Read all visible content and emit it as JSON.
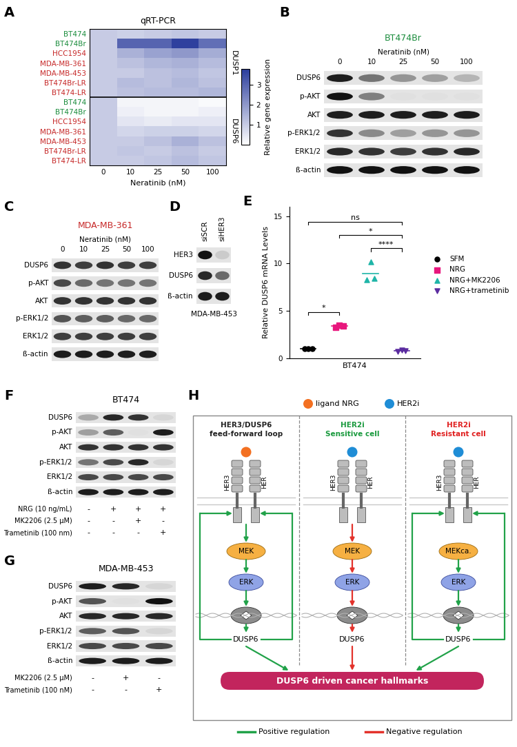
{
  "chart_data": [
    {
      "label": "A",
      "type": "heatmap",
      "title": "qRT-PCR",
      "x_label": "Neratinib (nM)",
      "categories": [
        0,
        10,
        25,
        50,
        100
      ],
      "groups": [
        {
          "name": "DUSP1",
          "rows": [
            {
              "name": "BT474",
              "color": "#1a8c3c",
              "values": [
                1.0,
                0.9,
                1.0,
                1.1,
                1.0
              ]
            },
            {
              "name": "BT474Br",
              "color": "#1a8c3c",
              "values": [
                1.0,
                3.0,
                3.0,
                3.7,
                2.8
              ]
            },
            {
              "name": "HCC1954",
              "color": "#c62828",
              "values": [
                1.0,
                1.5,
                1.8,
                2.0,
                1.6
              ]
            },
            {
              "name": "MDA-MB-361",
              "color": "#c62828",
              "values": [
                1.0,
                1.2,
                1.4,
                1.5,
                1.3
              ]
            },
            {
              "name": "MDA-MB-453",
              "color": "#c62828",
              "values": [
                1.0,
                1.0,
                1.2,
                1.3,
                1.1
              ]
            },
            {
              "name": "BT474Br-LR",
              "color": "#c62828",
              "values": [
                1.0,
                1.3,
                1.2,
                1.4,
                1.2
              ]
            },
            {
              "name": "BT474-LR",
              "color": "#c62828",
              "values": [
                1.0,
                1.2,
                1.3,
                1.3,
                1.4
              ]
            }
          ]
        },
        {
          "name": "DUSP6",
          "rows": [
            {
              "name": "BT474",
              "color": "#1a8c3c",
              "values": [
                1.0,
                0.2,
                0.2,
                0.2,
                0.1
              ]
            },
            {
              "name": "BT474Br",
              "color": "#1a8c3c",
              "values": [
                1.0,
                0.3,
                0.2,
                0.2,
                0.3
              ]
            },
            {
              "name": "HCC1954",
              "color": "#c62828",
              "values": [
                1.0,
                0.5,
                0.4,
                0.5,
                0.5
              ]
            },
            {
              "name": "MDA-MB-361",
              "color": "#c62828",
              "values": [
                1.0,
                0.8,
                0.9,
                0.9,
                0.8
              ]
            },
            {
              "name": "MDA-MB-453",
              "color": "#c62828",
              "values": [
                1.0,
                1.0,
                1.2,
                1.5,
                1.2
              ]
            },
            {
              "name": "BT474Br-LR",
              "color": "#c62828",
              "values": [
                1.0,
                1.1,
                1.0,
                1.2,
                1.0
              ]
            },
            {
              "name": "BT474-LR",
              "color": "#c62828",
              "values": [
                1.0,
                1.0,
                1.1,
                1.3,
                1.1
              ]
            }
          ]
        }
      ],
      "colorbar": {
        "label": "Relative gene expression",
        "range": [
          0,
          3.8
        ],
        "ticks": [
          1,
          2,
          3
        ]
      }
    },
    {
      "label": "E",
      "type": "scatter",
      "y_label": "Relative DUSP6 mRNA Levels",
      "x_label": "BT474",
      "ylim": [
        0,
        16
      ],
      "yticks": [
        0,
        5,
        10,
        15
      ],
      "tick_labels": "y",
      "legend": "right",
      "series": [
        {
          "name": "SFM",
          "color": "#000000",
          "marker": "circle",
          "values": [
            1.0,
            1.0,
            1.0
          ]
        },
        {
          "name": "NRG",
          "color": "#e8177d",
          "marker": "square",
          "values": [
            3.3,
            3.5,
            3.4
          ]
        },
        {
          "name": "NRG+MK2206",
          "color": "#1fb5a8",
          "marker": "triangle_up",
          "values": [
            8.3,
            10.2,
            8.4
          ]
        },
        {
          "name": "NRG+trametinib",
          "color": "#5b2ca0",
          "marker": "triangle_down",
          "values": [
            0.7,
            0.9,
            0.8
          ]
        }
      ],
      "significance": [
        {
          "from": "SFM",
          "to": "NRG",
          "label": "*"
        },
        {
          "from": "NRG+MK2206",
          "to": "NRG+trametinib",
          "label": "****"
        },
        {
          "from": "NRG",
          "to": "NRG+trametinib",
          "label": "*"
        },
        {
          "from": "SFM",
          "to": "NRG+trametinib",
          "label": "ns"
        }
      ]
    }
  ],
  "blots": [
    {
      "label": "B",
      "title": "BT474Br",
      "color": "#1a8c3c",
      "header": "Neratinib (nM)",
      "lanes": [
        0,
        10,
        25,
        50,
        100
      ],
      "rows": [
        {
          "name": "DUSP6",
          "intensity": [
            0.9,
            0.5,
            0.35,
            0.3,
            0.2
          ]
        },
        {
          "name": "p-AKT",
          "intensity": [
            0.95,
            0.45,
            0.0,
            0.0,
            0.0
          ]
        },
        {
          "name": "AKT",
          "intensity": [
            0.9,
            0.9,
            0.9,
            0.9,
            0.9
          ]
        },
        {
          "name": "p-ERK1/2",
          "intensity": [
            0.8,
            0.4,
            0.3,
            0.35,
            0.35
          ]
        },
        {
          "name": "ERK1/2",
          "intensity": [
            0.85,
            0.8,
            0.75,
            0.8,
            0.85
          ]
        },
        {
          "name": "ß-actin",
          "intensity": [
            0.95,
            0.95,
            0.95,
            0.95,
            0.95
          ]
        }
      ]
    },
    {
      "label": "C",
      "title": "MDA-MB-361",
      "color": "#c62828",
      "header": "Neratinib (nM)",
      "lanes": [
        0,
        10,
        25,
        50,
        100
      ],
      "rows": [
        {
          "name": "DUSP6",
          "intensity": [
            0.8,
            0.75,
            0.8,
            0.75,
            0.75
          ]
        },
        {
          "name": "p-AKT",
          "intensity": [
            0.7,
            0.55,
            0.5,
            0.5,
            0.5
          ]
        },
        {
          "name": "AKT",
          "intensity": [
            0.8,
            0.8,
            0.8,
            0.8,
            0.8
          ]
        },
        {
          "name": "p-ERK1/2",
          "intensity": [
            0.65,
            0.6,
            0.6,
            0.55,
            0.55
          ]
        },
        {
          "name": "ERK1/2",
          "intensity": [
            0.75,
            0.75,
            0.75,
            0.75,
            0.75
          ]
        },
        {
          "name": "ß-actin",
          "intensity": [
            0.9,
            0.9,
            0.9,
            0.9,
            0.9
          ]
        }
      ]
    },
    {
      "label": "D",
      "footer": "MDA-MB-453",
      "lanes": [
        "siSCR",
        "siHER3"
      ],
      "rows": [
        {
          "name": "HER3",
          "intensity": [
            0.95,
            0.1
          ]
        },
        {
          "name": "DUSP6",
          "intensity": [
            0.85,
            0.55
          ]
        },
        {
          "name": "ß-actin",
          "intensity": [
            0.9,
            0.9
          ]
        }
      ]
    },
    {
      "label": "F",
      "title": "BT474",
      "color": "#000000",
      "rows": [
        {
          "name": "DUSP6",
          "intensity": [
            0.25,
            0.85,
            0.8,
            0.05
          ]
        },
        {
          "name": "p-AKT",
          "intensity": [
            0.3,
            0.6,
            0.0,
            0.9
          ]
        },
        {
          "name": "AKT",
          "intensity": [
            0.8,
            0.8,
            0.8,
            0.8
          ]
        },
        {
          "name": "p-ERK1/2",
          "intensity": [
            0.5,
            0.7,
            0.85,
            0.05
          ]
        },
        {
          "name": "ERK1/2",
          "intensity": [
            0.7,
            0.7,
            0.7,
            0.7
          ]
        },
        {
          "name": "ß-actin",
          "intensity": [
            0.9,
            0.9,
            0.9,
            0.9
          ]
        }
      ],
      "treatments": [
        {
          "name": "NRG (10 ng/mL)",
          "signs": [
            "-",
            "+",
            "+",
            "+"
          ]
        },
        {
          "name": "MK2206 (2.5 µM)",
          "signs": [
            "-",
            "-",
            "+",
            "-"
          ]
        },
        {
          "name": "Trametinib (100 nm)",
          "signs": [
            "-",
            "-",
            "-",
            "+"
          ]
        }
      ]
    },
    {
      "label": "G",
      "title": "MDA-MB-453",
      "color": "#000000",
      "rows": [
        {
          "name": "DUSP6",
          "intensity": [
            0.9,
            0.85,
            0.05
          ]
        },
        {
          "name": "p-AKT",
          "intensity": [
            0.65,
            0.0,
            0.95
          ]
        },
        {
          "name": "AKT",
          "intensity": [
            0.85,
            0.85,
            0.85
          ]
        },
        {
          "name": "p-ERK1/2",
          "intensity": [
            0.6,
            0.65,
            0.05
          ]
        },
        {
          "name": "ERK1/2",
          "intensity": [
            0.7,
            0.7,
            0.7
          ]
        },
        {
          "name": "ß-actin",
          "intensity": [
            0.9,
            0.9,
            0.9
          ]
        }
      ],
      "treatments": [
        {
          "name": "MK2206 (2.5 µM)",
          "signs": [
            "-",
            "+",
            "-"
          ]
        },
        {
          "name": "Trametinib (100 nM)",
          "signs": [
            "-",
            "-",
            "+"
          ]
        }
      ]
    }
  ],
  "diagram": {
    "label": "H",
    "legend_top": [
      {
        "label": "ligand NRG",
        "color": "#f37021"
      },
      {
        "label": "HER2i",
        "color": "#1f8dd6"
      }
    ],
    "columns": [
      {
        "title": [
          "HER3/DUSP6",
          "feed-forward loop"
        ],
        "color": "#222222",
        "ligand": "ligand NRG",
        "receptors": [
          "HER3",
          "HER"
        ],
        "kinases": [
          "MEK",
          "ERK"
        ],
        "gene": "DUSP6",
        "regulation": "positive",
        "receptor_signal": true,
        "feedback": true
      },
      {
        "title": [
          "HER2i",
          "Sensitive cell"
        ],
        "color": "#1a9a3e",
        "ligand": "HER2i",
        "receptors": [
          "HER3",
          "HER"
        ],
        "kinases": [
          "MEK",
          "ERK"
        ],
        "gene": "DUSP6",
        "regulation": "negative",
        "receptor_signal": true,
        "feedback": false
      },
      {
        "title": [
          "HER2i",
          "Resistant cell"
        ],
        "color": "#e02020",
        "ligand": "HER2i",
        "receptors": [
          "HER3",
          "HER"
        ],
        "kinases": [
          "MEKca.",
          "ERK"
        ],
        "gene": "DUSP6",
        "regulation": "positive",
        "receptor_signal": false,
        "feedback": true
      }
    ],
    "output": "DUSP6 driven cancer hallmarks",
    "legend_bottom": [
      {
        "label": "Positive regulation",
        "regulation": "positive",
        "color": "#21a249"
      },
      {
        "label": "Negative regulation",
        "regulation": "negative",
        "color": "#e3322b"
      }
    ]
  }
}
